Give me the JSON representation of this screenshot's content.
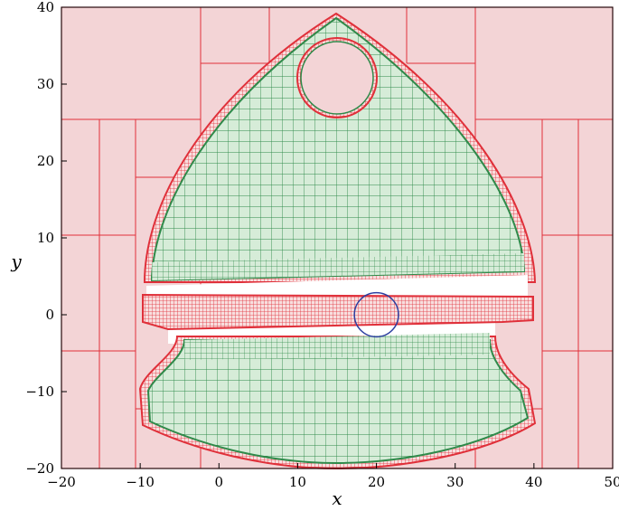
{
  "chart_data": {
    "type": "diagram",
    "title": "",
    "xlabel": "x",
    "ylabel": "y",
    "xlim": [
      -20,
      50
    ],
    "ylim": [
      -20,
      40
    ],
    "x_ticks": [
      "−20",
      "−10",
      "0",
      "10",
      "20",
      "30",
      "40",
      "50"
    ],
    "y_ticks": [
      "−20",
      "−10",
      "0",
      "10",
      "20",
      "30",
      "40"
    ],
    "colors": {
      "background_fill": "#f3d4d6",
      "outer_box_edge": "#e0303a",
      "inner_box_fill": "#d6ecd8",
      "inner_box_edge": "#2f8a4a",
      "boundary_box_fill": "#e8414a",
      "marker_circle": "#2c3ea0"
    },
    "marker_circle": {
      "center": [
        20,
        0
      ],
      "radius": 2.8
    },
    "notes": "Interval subpaving: green inner region (upper shield shape with circular hole near (15,30), lower band), red boundary boxes, central horizontal red strip near y=0."
  }
}
